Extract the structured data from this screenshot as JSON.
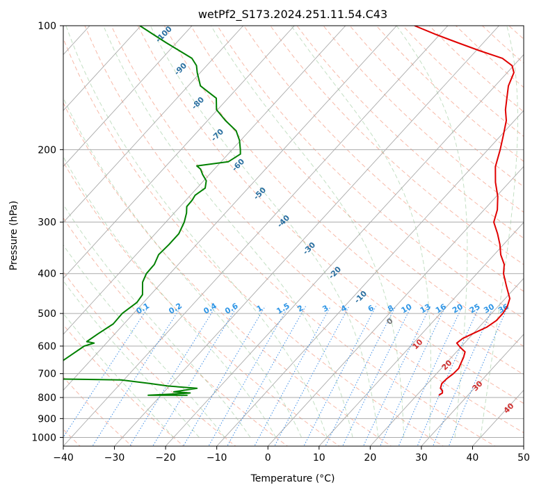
{
  "chart_data": {
    "type": "line",
    "subtype": "skew-t log-p diagram",
    "title": "wetPf2_S173.2024.251.11.54.C43",
    "xlabel": "Temperature (°C)",
    "ylabel": "Pressure (hPa)",
    "xlim": [
      -40,
      50
    ],
    "ylim": [
      1050,
      100
    ],
    "y_scale": "log",
    "grid": true,
    "x_ticks": [
      -40,
      -30,
      -20,
      -10,
      0,
      10,
      20,
      30,
      40,
      50
    ],
    "y_ticks": [
      100,
      200,
      300,
      400,
      500,
      600,
      700,
      800,
      900,
      1000
    ],
    "series": [
      {
        "role": "temperature",
        "color": "#e00000",
        "points": [
          [
            24.3,
            790
          ],
          [
            24.6,
            780
          ],
          [
            24.2,
            770
          ],
          [
            23.4,
            760
          ],
          [
            22.8,
            740
          ],
          [
            22.9,
            720
          ],
          [
            23.3,
            700
          ],
          [
            23.4,
            680
          ],
          [
            22.9,
            660
          ],
          [
            22.4,
            640
          ],
          [
            21.7,
            620
          ],
          [
            20.0,
            605
          ],
          [
            18.5,
            590
          ],
          [
            18.8,
            575
          ],
          [
            19.9,
            560
          ],
          [
            21.5,
            540
          ],
          [
            22.2,
            520
          ],
          [
            22.2,
            500
          ],
          [
            21.8,
            480
          ],
          [
            20.9,
            460
          ],
          [
            18.1,
            430
          ],
          [
            15.2,
            400
          ],
          [
            13.7,
            380
          ],
          [
            11.3,
            360
          ],
          [
            9.3,
            340
          ],
          [
            6.9,
            320
          ],
          [
            4.1,
            300
          ],
          [
            2.6,
            280
          ],
          [
            0.3,
            260
          ],
          [
            -2.7,
            240
          ],
          [
            -5.5,
            220
          ],
          [
            -7.6,
            200
          ],
          [
            -9.5,
            185
          ],
          [
            -11.6,
            170
          ],
          [
            -13.7,
            160
          ],
          [
            -15.5,
            150
          ],
          [
            -17.4,
            140
          ],
          [
            -18.7,
            130
          ],
          [
            -20.3,
            125
          ],
          [
            -23.5,
            120
          ],
          [
            -29.3,
            115
          ],
          [
            -35.0,
            110
          ],
          [
            -40.8,
            105
          ],
          [
            -46.5,
            100
          ]
        ]
      },
      {
        "role": "dewpoint",
        "color": "#008000",
        "points": [
          [
            -24.8,
            790
          ],
          [
            -32.5,
            790
          ],
          [
            -28.4,
            785
          ],
          [
            -24.7,
            780
          ],
          [
            -28.1,
            775
          ],
          [
            -24.2,
            760
          ],
          [
            -30.4,
            750
          ],
          [
            -34.1,
            740
          ],
          [
            -40.5,
            725
          ],
          [
            -57.3,
            720
          ],
          [
            -53.8,
            600
          ],
          [
            -52.4,
            590
          ],
          [
            -54.1,
            585
          ],
          [
            -53.3,
            560
          ],
          [
            -52.1,
            530
          ],
          [
            -52.2,
            500
          ],
          [
            -51.3,
            470
          ],
          [
            -51.6,
            450
          ],
          [
            -53.8,
            420
          ],
          [
            -54.6,
            400
          ],
          [
            -54.7,
            380
          ],
          [
            -55.6,
            360
          ],
          [
            -55.4,
            340
          ],
          [
            -55.4,
            320
          ],
          [
            -56.4,
            300
          ],
          [
            -57.6,
            285
          ],
          [
            -58.7,
            275
          ],
          [
            -58.8,
            265
          ],
          [
            -59.1,
            258
          ],
          [
            -58.4,
            248
          ],
          [
            -59.5,
            238
          ],
          [
            -61.3,
            230
          ],
          [
            -62.7,
            223
          ],
          [
            -64.0,
            219
          ],
          [
            -58.6,
            214
          ],
          [
            -57.6,
            205
          ],
          [
            -58.4,
            200
          ],
          [
            -60.2,
            190
          ],
          [
            -62.6,
            180
          ],
          [
            -66.5,
            170
          ],
          [
            -70.2,
            160
          ],
          [
            -72.3,
            150
          ],
          [
            -77.6,
            140
          ],
          [
            -80.6,
            130
          ],
          [
            -82.0,
            125
          ],
          [
            -84.2,
            120
          ],
          [
            -88.0,
            115
          ],
          [
            -92.0,
            110
          ],
          [
            -96.0,
            105
          ],
          [
            -100.2,
            100
          ]
        ]
      }
    ],
    "reference_lines": {
      "isotherms": {
        "color": "#aaaaaa",
        "style": "solid",
        "every_deg_c": 10
      },
      "dry_adiabats": {
        "color": "#f08060",
        "style": "dashed"
      },
      "moist_adiabats": {
        "color": "#7ab87a",
        "style": "dashed"
      },
      "mixing_ratio": {
        "color": "#3c8ce6",
        "style": "dotted"
      }
    },
    "mixing_ratio_labels": {
      "color": "#2f96e6",
      "pressure": 500,
      "values": [
        "0.1",
        "0.2",
        "0.4",
        "0.6",
        "1",
        "1.5",
        "2",
        "3",
        "4",
        "6",
        "8",
        "10",
        "13",
        "16",
        "20",
        "25",
        "30",
        "36"
      ]
    },
    "moist_adiabat_labels": {
      "color": "#2a6fa0",
      "values": [
        "-100",
        "-90",
        "-80",
        "-70",
        "-60",
        "-50",
        "-40",
        "-30",
        "-20",
        "-10"
      ]
    },
    "extra_labels": [
      {
        "text": "0",
        "color": "#777777"
      },
      {
        "text": "10",
        "color": "#d03030"
      },
      {
        "text": "20",
        "color": "#d03030"
      },
      {
        "text": "30",
        "color": "#d03030"
      },
      {
        "text": "40",
        "color": "#d03030"
      }
    ]
  }
}
